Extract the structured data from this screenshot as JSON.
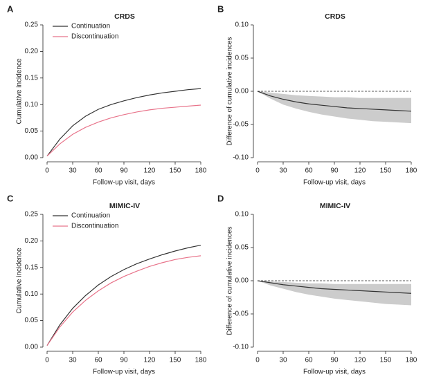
{
  "chart_data": [
    {
      "type": "line",
      "panel": "A",
      "title": "CRDS",
      "xlabel": "Follow-up visit, days",
      "ylabel": "Cumulative incidence",
      "x": [
        0,
        15,
        30,
        45,
        60,
        75,
        90,
        105,
        120,
        135,
        150,
        165,
        180
      ],
      "series": [
        {
          "name": "Continuation",
          "color": "#333333",
          "values": [
            0.003,
            0.035,
            0.06,
            0.078,
            0.091,
            0.1,
            0.107,
            0.113,
            0.118,
            0.122,
            0.125,
            0.128,
            0.13
          ]
        },
        {
          "name": "Discontinuation",
          "color": "#e8738a",
          "values": [
            0.003,
            0.026,
            0.044,
            0.057,
            0.067,
            0.075,
            0.081,
            0.086,
            0.09,
            0.093,
            0.095,
            0.097,
            0.099
          ]
        }
      ],
      "xlim": [
        0,
        180
      ],
      "xticks": [
        0,
        30,
        60,
        90,
        120,
        150,
        180
      ],
      "ylim": [
        0,
        0.25
      ],
      "yticks": [
        {
          "value": 0,
          "label": "0.00"
        },
        0.05,
        {
          "value": 0.1,
          "label": "0.10"
        },
        0.15,
        {
          "value": 0.2,
          "label": "0.20"
        },
        0.25
      ],
      "legend": "upper left"
    },
    {
      "type": "line",
      "panel": "B",
      "title": "CRDS",
      "xlabel": "Follow-up visit, days",
      "ylabel": "Difference of cumulative incidences",
      "x": [
        0,
        15,
        30,
        45,
        60,
        75,
        90,
        105,
        120,
        135,
        150,
        165,
        180
      ],
      "series": [
        {
          "color": "#333333",
          "values": [
            0,
            -0.007,
            -0.012,
            -0.016,
            -0.019,
            -0.021,
            -0.023,
            -0.025,
            -0.026,
            -0.027,
            -0.028,
            -0.029,
            -0.03
          ]
        }
      ],
      "band": {
        "color": "#cccccc",
        "upper": [
          0,
          -0.002,
          -0.004,
          -0.006,
          -0.007,
          -0.008,
          -0.009,
          -0.009,
          -0.01,
          -0.01,
          -0.01,
          -0.01,
          -0.01
        ],
        "lower": [
          0,
          -0.011,
          -0.02,
          -0.026,
          -0.031,
          -0.035,
          -0.038,
          -0.041,
          -0.043,
          -0.045,
          -0.046,
          -0.047,
          -0.048
        ]
      },
      "hline": 0,
      "xlim": [
        0,
        180
      ],
      "xticks": [
        0,
        30,
        60,
        90,
        120,
        150,
        180
      ],
      "ylim": [
        -0.1,
        0.1
      ],
      "yticks": [
        {
          "value": -0.1,
          "label": "-0.10"
        },
        -0.05,
        {
          "value": 0,
          "label": "0.00"
        },
        0.05,
        {
          "value": 0.1,
          "label": "0.10"
        }
      ]
    },
    {
      "type": "line",
      "panel": "C",
      "title": "MIMIC-IV",
      "xlabel": "Follow-up visit, days",
      "ylabel": "Cumulative incidence",
      "x": [
        0,
        15,
        30,
        45,
        60,
        75,
        90,
        105,
        120,
        135,
        150,
        165,
        180
      ],
      "series": [
        {
          "name": "Continuation",
          "color": "#333333",
          "values": [
            0.003,
            0.042,
            0.073,
            0.097,
            0.117,
            0.133,
            0.146,
            0.157,
            0.166,
            0.174,
            0.181,
            0.187,
            0.192
          ]
        },
        {
          "name": "Discontinuation",
          "color": "#e8738a",
          "values": [
            0.003,
            0.038,
            0.066,
            0.088,
            0.106,
            0.121,
            0.133,
            0.143,
            0.152,
            0.159,
            0.165,
            0.169,
            0.172
          ]
        }
      ],
      "xlim": [
        0,
        180
      ],
      "xticks": [
        0,
        30,
        60,
        90,
        120,
        150,
        180
      ],
      "ylim": [
        0,
        0.25
      ],
      "yticks": [
        {
          "value": 0,
          "label": "0.00"
        },
        0.05,
        {
          "value": 0.1,
          "label": "0.10"
        },
        0.15,
        {
          "value": 0.2,
          "label": "0.20"
        },
        0.25
      ],
      "legend": "upper left"
    },
    {
      "type": "line",
      "panel": "D",
      "title": "MIMIC-IV",
      "xlabel": "Follow-up visit, days",
      "ylabel": "Difference of cumulative incidences",
      "x": [
        0,
        15,
        30,
        45,
        60,
        75,
        90,
        105,
        120,
        135,
        150,
        165,
        180
      ],
      "series": [
        {
          "color": "#333333",
          "values": [
            0,
            -0.003,
            -0.006,
            -0.008,
            -0.01,
            -0.012,
            -0.013,
            -0.014,
            -0.015,
            -0.016,
            -0.017,
            -0.018,
            -0.019
          ]
        }
      ],
      "band": {
        "color": "#cccccc",
        "upper": [
          0,
          -0.001,
          -0.002,
          -0.003,
          -0.004,
          -0.004,
          -0.005,
          -0.005,
          -0.005,
          -0.005,
          -0.005,
          -0.005,
          -0.005
        ],
        "lower": [
          0,
          -0.007,
          -0.012,
          -0.017,
          -0.021,
          -0.024,
          -0.027,
          -0.029,
          -0.031,
          -0.033,
          -0.035,
          -0.036,
          -0.037
        ]
      },
      "hline": 0,
      "xlim": [
        0,
        180
      ],
      "xticks": [
        0,
        30,
        60,
        90,
        120,
        150,
        180
      ],
      "ylim": [
        -0.1,
        0.1
      ],
      "yticks": [
        {
          "value": -0.1,
          "label": "-0.10"
        },
        -0.05,
        {
          "value": 0,
          "label": "0.00"
        },
        0.05,
        {
          "value": 0.1,
          "label": "0.10"
        }
      ]
    }
  ]
}
